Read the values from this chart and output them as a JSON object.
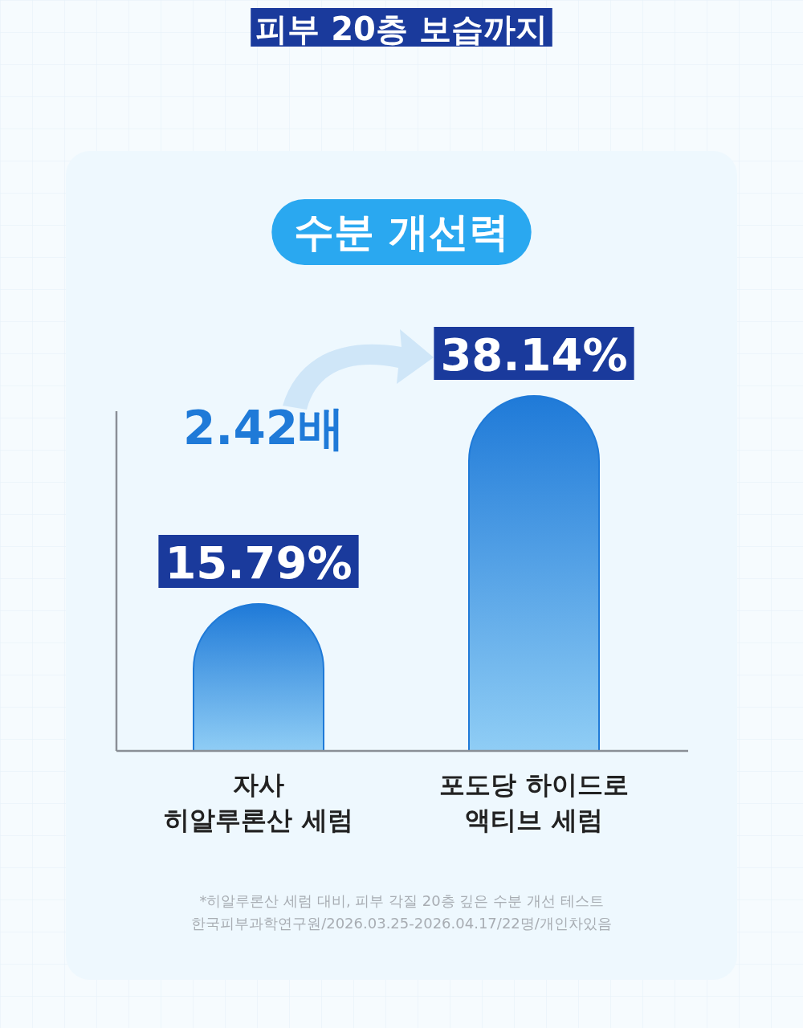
{
  "chart_data": {
    "type": "bar",
    "title": "피부 20층 보습까지",
    "subtitle": "수분 개선력",
    "categories": [
      "자사\n히알루론산 세럼",
      "포도당 하이드로\n액티브 세럼"
    ],
    "values": [
      15.79,
      38.14
    ],
    "value_labels": [
      "15.79%",
      "38.14%"
    ],
    "color": "#1f7ad8",
    "annotations": [
      "2.42배",
      "*히알루론산 세럼 대비,  피부 각질 20층 깊은 수분 개선 테스트",
      "한국피부과학연구원/2026.03.25-2026.04.17/22명/개인차있음"
    ]
  }
}
